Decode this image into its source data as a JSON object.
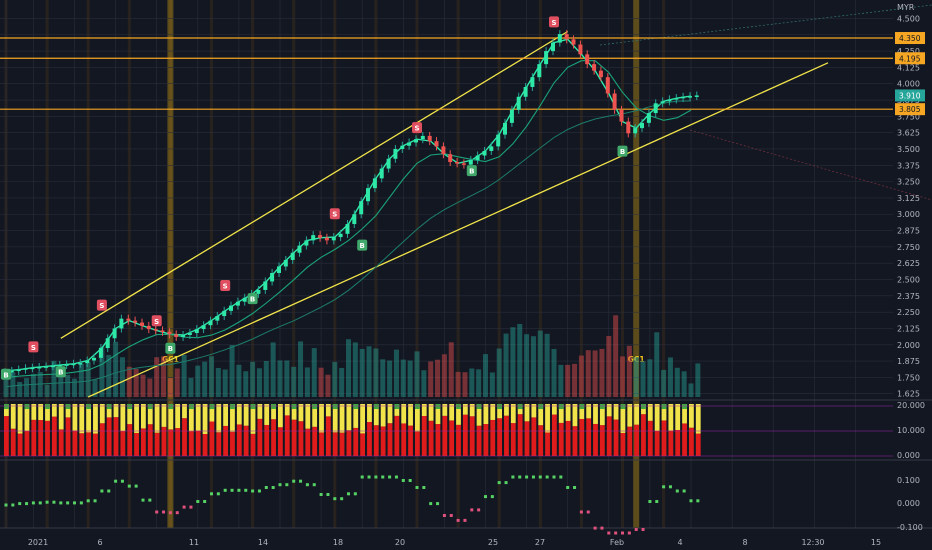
{
  "chart_data": {
    "type": "candlestick",
    "currency": "MYR",
    "price_axis": {
      "ticks": [
        "4.500",
        "4.375",
        "4.250",
        "4.125",
        "4.000",
        "3.875",
        "3.750",
        "3.625",
        "3.500",
        "3.375",
        "3.250",
        "3.125",
        "3.000",
        "2.875",
        "2.750",
        "2.625",
        "2.500",
        "2.375",
        "2.250",
        "2.125",
        "2.000",
        "1.875",
        "1.750",
        "1.625"
      ],
      "range": [
        1.6,
        4.58
      ]
    },
    "x_axis_labels": [
      "2021",
      "6",
      "11",
      "14",
      "18",
      "20",
      "25",
      "27",
      "Feb",
      "4",
      "8",
      "12:30",
      "15"
    ],
    "price_tags": [
      {
        "label": "4.350",
        "value": 4.35,
        "color": "#f5a623"
      },
      {
        "label": "4.195",
        "value": 4.195,
        "color": "#f5a623"
      },
      {
        "label": "3.910",
        "value": 3.91,
        "color": "#26a69a"
      },
      {
        "label": "3.805",
        "value": 3.805,
        "color": "#f5a623"
      }
    ],
    "horizontal_levels": [
      4.35,
      4.195,
      3.805
    ],
    "vertical_lines": [
      {
        "day": 12,
        "label": "GC1"
      },
      {
        "day": 46,
        "label": "GC1"
      }
    ],
    "trend_channel": {
      "upper": [
        [
          4,
          2.05
        ],
        [
          41,
          4.4
        ]
      ],
      "lower": [
        [
          6,
          1.6
        ],
        [
          60,
          4.16
        ]
      ]
    },
    "close_series": [
      1.8,
      1.82,
      1.83,
      1.84,
      1.85,
      1.86,
      1.9,
      2.05,
      2.2,
      2.17,
      2.12,
      2.1,
      2.06,
      2.09,
      2.15,
      2.22,
      2.3,
      2.36,
      2.42,
      2.55,
      2.65,
      2.76,
      2.84,
      2.8,
      2.85,
      3.0,
      3.2,
      3.35,
      3.5,
      3.55,
      3.6,
      3.52,
      3.4,
      3.38,
      3.45,
      3.52,
      3.7,
      3.9,
      4.05,
      4.25,
      4.38,
      4.3,
      4.15,
      4.05,
      3.8,
      3.62,
      3.7,
      3.85,
      3.88,
      3.9,
      3.91
    ],
    "signals": [
      {
        "day": 0,
        "type": "B",
        "price": 1.77
      },
      {
        "day": 2,
        "type": "S",
        "price": 1.98
      },
      {
        "day": 4,
        "type": "B",
        "price": 1.79
      },
      {
        "day": 7,
        "type": "S",
        "price": 2.3
      },
      {
        "day": 11,
        "type": "S",
        "price": 2.18
      },
      {
        "day": 12,
        "type": "B",
        "price": 1.97
      },
      {
        "day": 16,
        "type": "S",
        "price": 2.45
      },
      {
        "day": 18,
        "type": "B",
        "price": 2.35
      },
      {
        "day": 24,
        "type": "S",
        "price": 3.0
      },
      {
        "day": 26,
        "type": "B",
        "price": 2.76
      },
      {
        "day": 30,
        "type": "S",
        "price": 3.66
      },
      {
        "day": 34,
        "type": "B",
        "price": 3.33
      },
      {
        "day": 40,
        "type": "S",
        "price": 4.47
      },
      {
        "day": 45,
        "type": "B",
        "price": 3.48
      }
    ],
    "volume_panel": {
      "note": "volume histogram"
    },
    "oscillator_1": {
      "ticks": [
        "20.000",
        "10.000",
        "0.000"
      ],
      "range": [
        0,
        20
      ]
    },
    "oscillator_2": {
      "ticks": [
        "0.100",
        "0.000",
        "-0.100"
      ],
      "range": [
        -0.15,
        0.15
      ]
    },
    "grid": true
  }
}
